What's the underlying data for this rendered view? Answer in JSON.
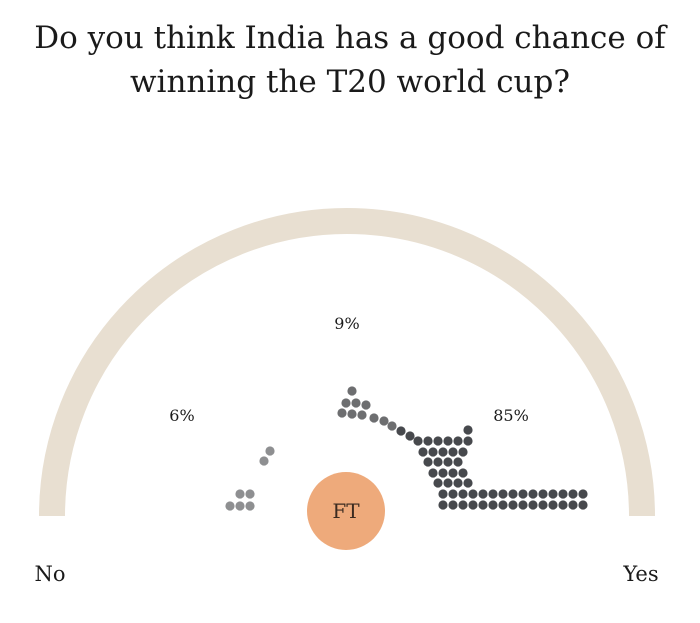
{
  "title_line1": "Do you think India has a good chance of",
  "title_line2": "winning the T20 world cup?",
  "chart_data": {
    "type": "semicircle-dot-scale",
    "scale_labels": [
      "No",
      "Yes"
    ],
    "groups": [
      {
        "label": "6%",
        "value": 6,
        "position": "No side"
      },
      {
        "label": "9%",
        "value": 9,
        "position": "middle"
      },
      {
        "label": "85%",
        "value": 85,
        "position": "Yes side"
      }
    ],
    "badge": "FT",
    "colors": {
      "arc": "#e8dfd1",
      "dot_dark": "#47494d",
      "dot_mid": "#6d6e70",
      "dot_light": "#8e8f91",
      "badge": "#eeaa7b"
    }
  }
}
